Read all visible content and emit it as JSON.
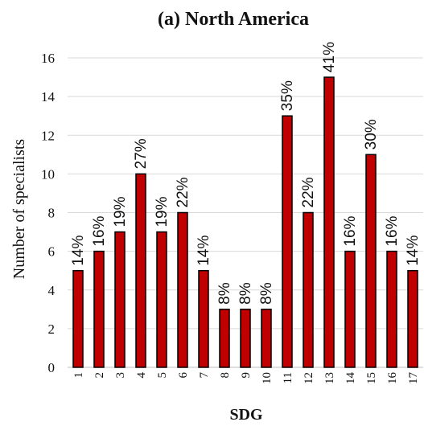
{
  "chart_data": {
    "type": "bar",
    "title": "(a) North America",
    "xlabel": "SDG",
    "ylabel": "Number of specialists",
    "categories": [
      "1",
      "2",
      "3",
      "4",
      "5",
      "6",
      "7",
      "8",
      "9",
      "10",
      "11",
      "12",
      "13",
      "14",
      "15",
      "16",
      "17"
    ],
    "values": [
      5,
      6,
      7,
      10,
      7,
      8,
      5,
      3,
      3,
      3,
      13,
      8,
      15,
      6,
      11,
      6,
      5
    ],
    "data_labels": [
      "14%",
      "16%",
      "19%",
      "27%",
      "19%",
      "22%",
      "14%",
      "8%",
      "8%",
      "8%",
      "35%",
      "22%",
      "41%",
      "16%",
      "30%",
      "16%",
      "14%"
    ],
    "yticks": [
      0,
      2,
      4,
      6,
      8,
      10,
      12,
      14,
      16
    ],
    "ylim": [
      0,
      16
    ],
    "grid": true,
    "bar_color": "#c00000",
    "bar_edge_color": "#000000"
  }
}
